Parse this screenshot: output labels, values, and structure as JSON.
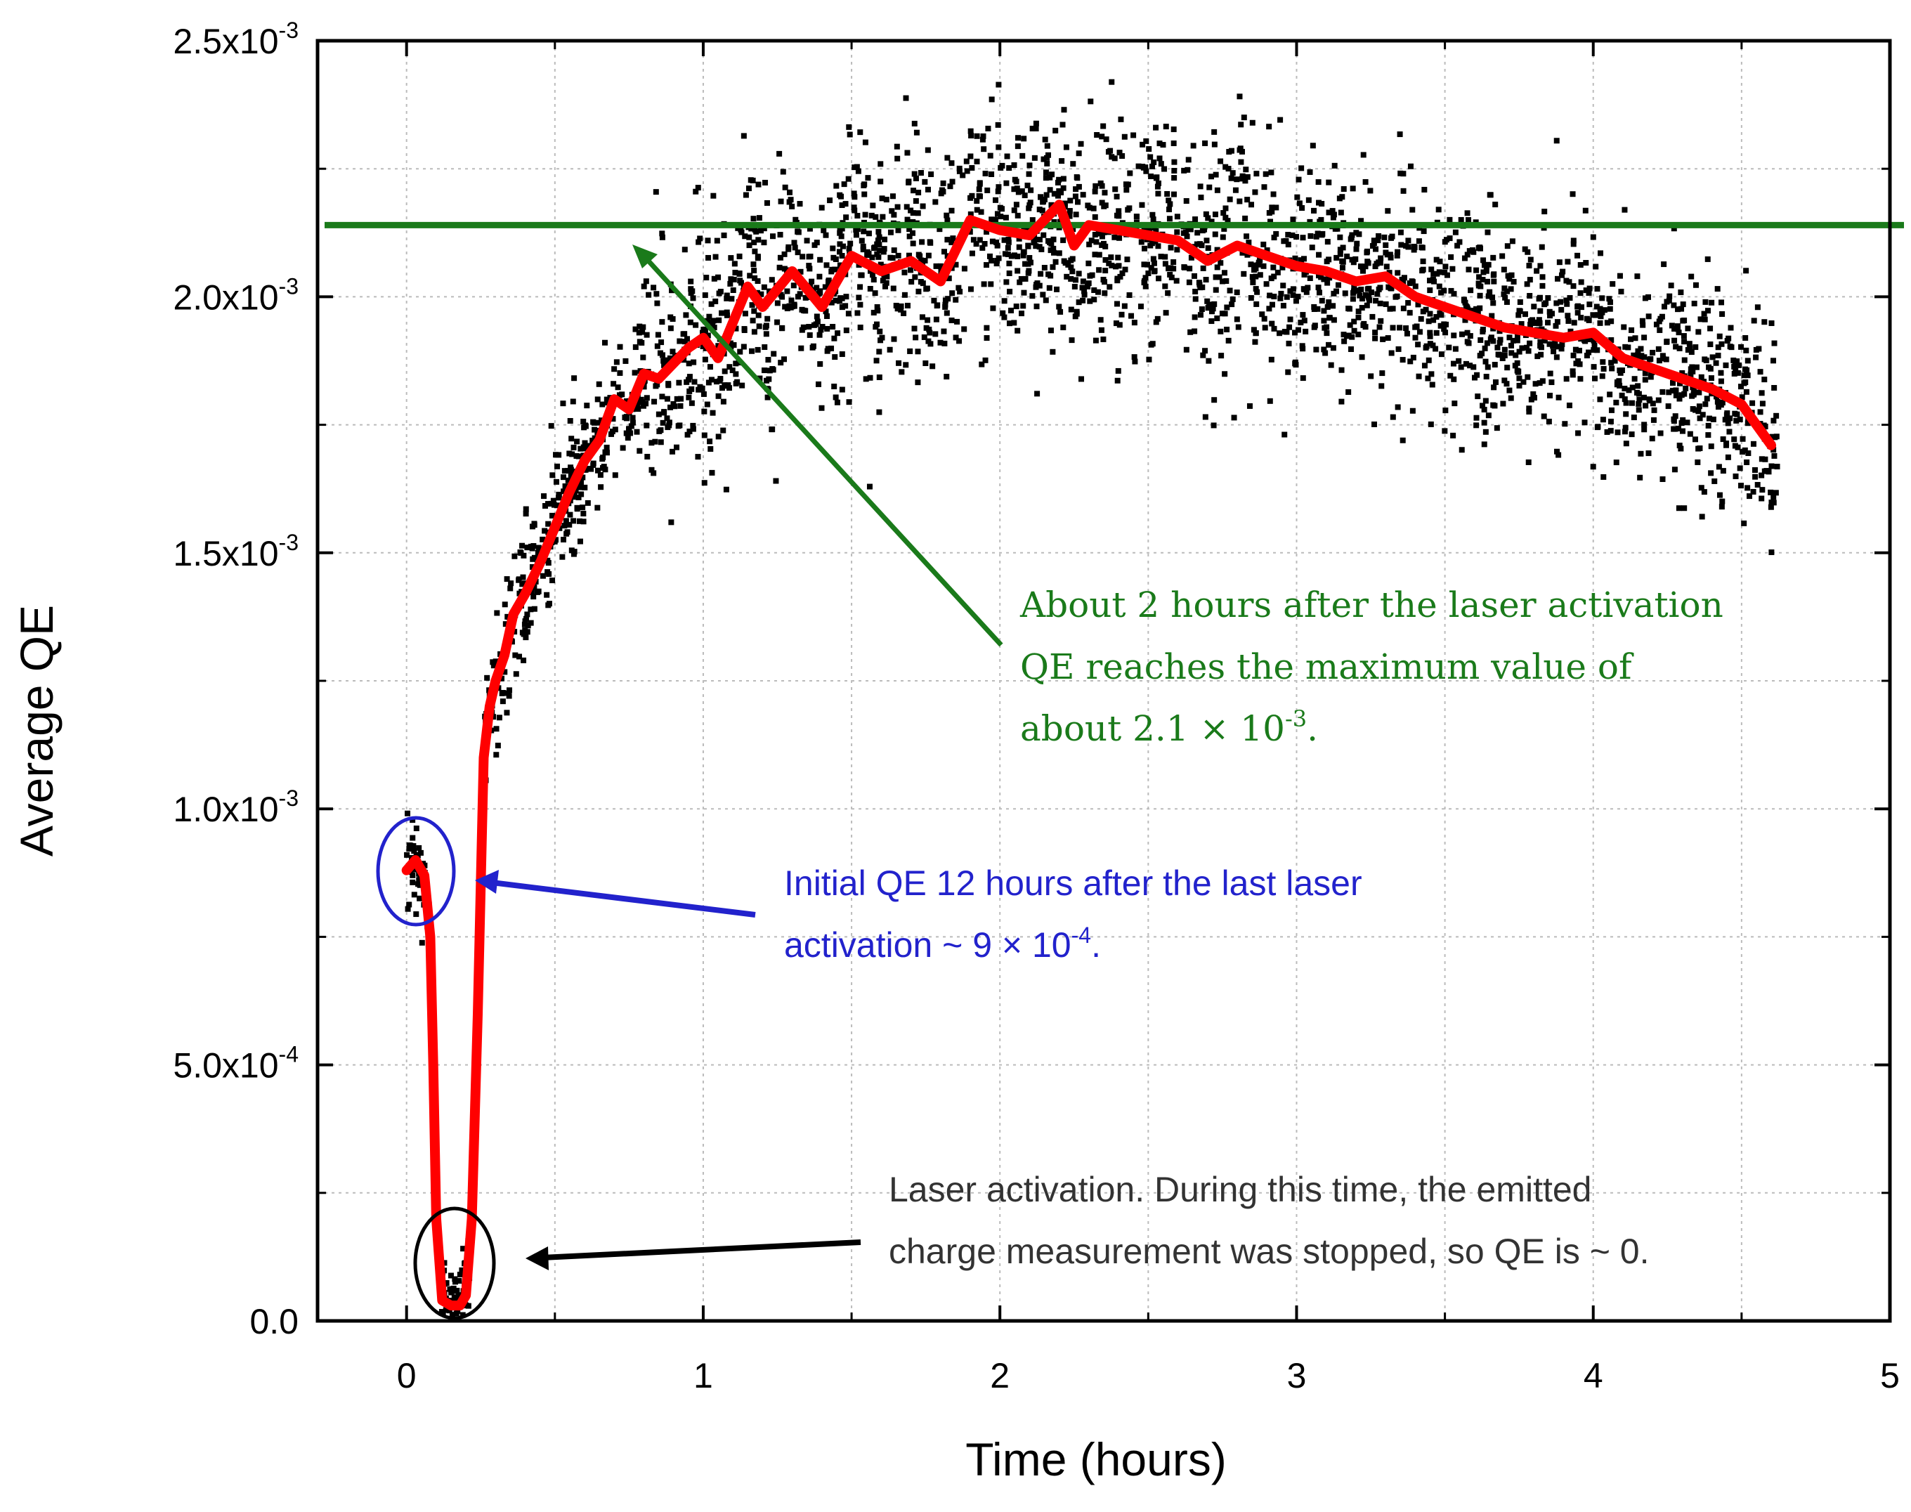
{
  "chart_data": {
    "type": "scatter",
    "xlabel": "Time (hours)",
    "ylabel": "Average QE",
    "xlim": [
      -0.3,
      5
    ],
    "ylim": [
      0,
      0.0025
    ],
    "x_ticks": [
      0,
      1,
      2,
      3,
      4,
      5
    ],
    "x_tick_labels": [
      "0",
      "1",
      "2",
      "3",
      "4",
      "5"
    ],
    "y_ticks": [
      0,
      0.0005,
      0.001,
      0.0015,
      0.002,
      0.0025
    ],
    "y_tick_labels": [
      {
        "mant": "0.0",
        "exp": ""
      },
      {
        "mant": "5.0x10",
        "exp": "-4"
      },
      {
        "mant": "1.0x10",
        "exp": "-3"
      },
      {
        "mant": "1.5x10",
        "exp": "-3"
      },
      {
        "mant": "2.0x10",
        "exp": "-3"
      },
      {
        "mant": "2.5x10",
        "exp": "-3"
      }
    ],
    "grid": true,
    "series": [
      {
        "kind": "scatter",
        "color": "#000000",
        "x_range": [
          0,
          4.62
        ],
        "point_count": 3000
      },
      {
        "kind": "line",
        "color": "#ff0000",
        "x": [
          0.0,
          0.03,
          0.06,
          0.08,
          0.09,
          0.1,
          0.12,
          0.15,
          0.18,
          0.2,
          0.22,
          0.24,
          0.26,
          0.28,
          0.3,
          0.33,
          0.36,
          0.4,
          0.45,
          0.5,
          0.55,
          0.6,
          0.65,
          0.7,
          0.75,
          0.8,
          0.85,
          0.9,
          0.95,
          1.0,
          1.05,
          1.1,
          1.15,
          1.2,
          1.3,
          1.4,
          1.5,
          1.6,
          1.7,
          1.8,
          1.9,
          2.0,
          2.1,
          2.2,
          2.25,
          2.3,
          2.4,
          2.5,
          2.6,
          2.7,
          2.8,
          2.9,
          3.0,
          3.1,
          3.2,
          3.3,
          3.4,
          3.5,
          3.6,
          3.7,
          3.8,
          3.9,
          4.0,
          4.1,
          4.2,
          4.3,
          4.4,
          4.5,
          4.6
        ],
        "y": [
          0.00088,
          0.0009,
          0.00087,
          0.00075,
          0.0005,
          0.0002,
          4e-05,
          3e-05,
          3e-05,
          5e-05,
          0.0002,
          0.0006,
          0.0011,
          0.0012,
          0.00125,
          0.0013,
          0.00138,
          0.00142,
          0.00148,
          0.00155,
          0.00162,
          0.00168,
          0.00172,
          0.0018,
          0.00178,
          0.00185,
          0.00184,
          0.00187,
          0.0019,
          0.00192,
          0.00188,
          0.00195,
          0.00202,
          0.00198,
          0.00205,
          0.00198,
          0.00208,
          0.00205,
          0.00207,
          0.00203,
          0.00215,
          0.00213,
          0.00212,
          0.00218,
          0.0021,
          0.00214,
          0.00213,
          0.00212,
          0.00211,
          0.00207,
          0.0021,
          0.00208,
          0.00206,
          0.00205,
          0.00203,
          0.00204,
          0.002,
          0.00198,
          0.00196,
          0.00194,
          0.00193,
          0.00192,
          0.00193,
          0.00188,
          0.00186,
          0.00184,
          0.00182,
          0.00179,
          0.00171
        ]
      },
      {
        "kind": "hline",
        "color": "#1a7a1a",
        "y": 0.00214
      }
    ],
    "annotations": {
      "green": {
        "color": "#1a7a1a",
        "lines": [
          "About 2 hours after the laser activation",
          "QE reaches the maximum value of"
        ],
        "line3_pre": "about 2.1 × 10",
        "line3_sup": "-3",
        "line3_post": "."
      },
      "blue": {
        "color": "#2222cc",
        "line1": "Initial QE 12 hours after the last laser",
        "line2_pre": "activation ~ 9 × 10",
        "line2_sup": "-4",
        "line2_post": "."
      },
      "black": {
        "color": "#333333",
        "line1": "Laser activation. During this time, the emitted",
        "line2": "charge measurement was stopped, so QE is ~ 0."
      }
    }
  }
}
